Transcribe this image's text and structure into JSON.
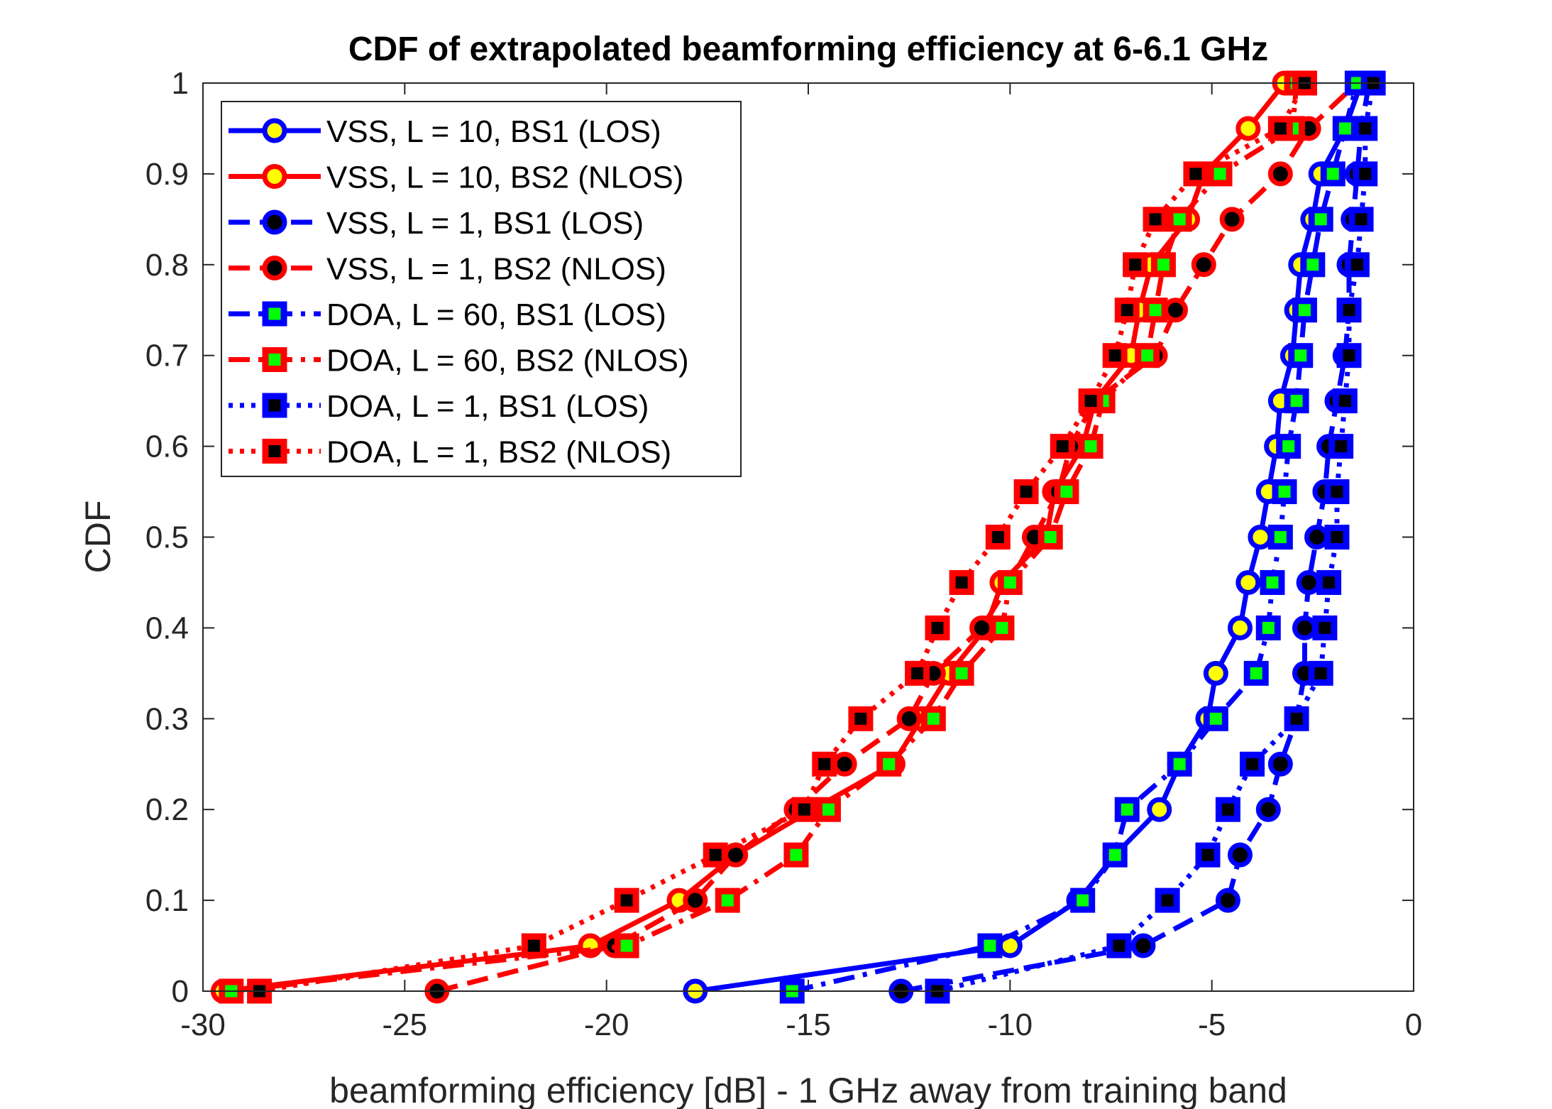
{
  "chart_data": {
    "type": "line",
    "title": "CDF of extrapolated beamforming efficiency at 6-6.1 GHz",
    "xlabel": "beamforming efficiency [dB] - 1 GHz away from training band",
    "ylabel": "CDF",
    "xlim": [
      -30,
      0
    ],
    "ylim": [
      0,
      1
    ],
    "xticks": [
      -30,
      -25,
      -20,
      -15,
      -10,
      -5,
      0
    ],
    "xtick_labels": [
      "-30",
      "-25",
      "-20",
      "-15",
      "-10",
      "-5",
      "0"
    ],
    "yticks": [
      0,
      0.1,
      0.2,
      0.3,
      0.4,
      0.5,
      0.6,
      0.7,
      0.8,
      0.9,
      1
    ],
    "ytick_labels": [
      "0",
      "0.1",
      "0.2",
      "0.3",
      "0.4",
      "0.5",
      "0.6",
      "0.7",
      "0.8",
      "0.9",
      "1"
    ],
    "legend_position": "top-left",
    "y": [
      0,
      0.05,
      0.1,
      0.15,
      0.2,
      0.25,
      0.3,
      0.35,
      0.4,
      0.45,
      0.5,
      0.55,
      0.6,
      0.65,
      0.7,
      0.75,
      0.8,
      0.85,
      0.9,
      0.95,
      1
    ],
    "series": [
      {
        "name": "VSS, L = 10, BS1 (LOS)",
        "color": "#0000ff",
        "dash": "solid",
        "marker": "circle",
        "marker_face": "#ffff00",
        "x": [
          -17.8,
          -10.0,
          -8.3,
          -7.4,
          -6.3,
          -5.8,
          -5.1,
          -4.9,
          -4.3,
          -4.1,
          -3.8,
          -3.6,
          -3.4,
          -3.3,
          -3.0,
          -2.9,
          -2.8,
          -2.5,
          -2.3,
          -1.7,
          -1.3
        ]
      },
      {
        "name": "VSS, L = 10, BS2 (NLOS)",
        "color": "#ff0000",
        "dash": "solid",
        "marker": "circle",
        "marker_face": "#ffff00",
        "x": [
          -29.5,
          -20.4,
          -18.2,
          -16.8,
          -14.9,
          -12.9,
          -12.2,
          -11.5,
          -10.6,
          -10.2,
          -9.1,
          -8.9,
          -8.2,
          -7.9,
          -7.0,
          -6.8,
          -6.5,
          -5.6,
          -5.2,
          -4.1,
          -3.2
        ]
      },
      {
        "name": "VSS, L = 1, BS1 (LOS)",
        "color": "#0000ff",
        "dash": "dash",
        "marker": "circle",
        "marker_face": "#000000",
        "x": [
          -12.7,
          -6.7,
          -4.6,
          -4.3,
          -3.6,
          -3.3,
          -2.9,
          -2.7,
          -2.7,
          -2.6,
          -2.4,
          -2.2,
          -2.1,
          -1.9,
          -1.7,
          -1.6,
          -1.6,
          -1.5,
          -1.4,
          -1.3,
          -1.1
        ]
      },
      {
        "name": "VSS, L = 1, BS2 (NLOS)",
        "color": "#ff0000",
        "dash": "dash",
        "marker": "circle",
        "marker_face": "#000000",
        "x": [
          -24.2,
          -19.8,
          -17.8,
          -16.8,
          -15.3,
          -14.1,
          -12.5,
          -11.9,
          -10.7,
          -10.0,
          -9.4,
          -8.8,
          -8.5,
          -7.9,
          -6.4,
          -5.9,
          -5.2,
          -4.5,
          -3.3,
          -2.6,
          -1.4
        ]
      },
      {
        "name": "DOA, L = 60, BS1 (LOS)",
        "color": "#0000ff",
        "dash": "dashdot",
        "marker": "square",
        "marker_face": "#00ff00",
        "x": [
          -15.4,
          -10.5,
          -8.2,
          -7.4,
          -7.1,
          -5.8,
          -4.9,
          -3.9,
          -3.6,
          -3.5,
          -3.3,
          -3.2,
          -3.1,
          -2.9,
          -2.8,
          -2.7,
          -2.5,
          -2.3,
          -2.0,
          -1.7,
          -1.4
        ]
      },
      {
        "name": "DOA, L = 60, BS2 (NLOS)",
        "color": "#ff0000",
        "dash": "dashdot",
        "marker": "square",
        "marker_face": "#00ff00",
        "x": [
          -29.3,
          -19.5,
          -17.0,
          -15.3,
          -14.5,
          -13.0,
          -11.9,
          -11.2,
          -10.2,
          -10.0,
          -9.0,
          -8.6,
          -8.0,
          -7.7,
          -6.6,
          -6.4,
          -6.2,
          -5.8,
          -4.8,
          -3.0,
          -2.9
        ]
      },
      {
        "name": "DOA, L = 1, BS1 (LOS)",
        "color": "#0000ff",
        "dash": "dot",
        "marker": "square",
        "marker_face": "#000000",
        "x": [
          -11.8,
          -7.3,
          -6.1,
          -5.1,
          -4.6,
          -4.0,
          -2.9,
          -2.3,
          -2.2,
          -2.1,
          -1.9,
          -1.9,
          -1.8,
          -1.7,
          -1.6,
          -1.6,
          -1.4,
          -1.3,
          -1.2,
          -1.2,
          -1.0
        ]
      },
      {
        "name": "DOA, L = 1, BS2 (NLOS)",
        "color": "#ff0000",
        "dash": "dot",
        "marker": "square",
        "marker_face": "#000000",
        "x": [
          -28.6,
          -21.8,
          -19.5,
          -17.3,
          -15.1,
          -14.6,
          -13.7,
          -12.3,
          -11.8,
          -11.2,
          -10.3,
          -9.6,
          -8.7,
          -8.0,
          -7.4,
          -7.1,
          -6.9,
          -6.4,
          -5.4,
          -3.3,
          -2.7
        ]
      }
    ]
  }
}
